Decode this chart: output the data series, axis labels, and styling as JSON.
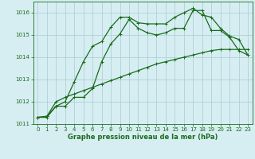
{
  "xlabel": "Graphe pression niveau de la mer (hPa)",
  "bg_color": "#d6eef2",
  "grid_color": "#afd0d8",
  "line_color": "#1a6b1a",
  "ylim": [
    1011.0,
    1016.5
  ],
  "xlim": [
    -0.5,
    23.5
  ],
  "yticks": [
    1011,
    1012,
    1013,
    1014,
    1015,
    1016
  ],
  "xticks": [
    0,
    1,
    2,
    3,
    4,
    5,
    6,
    7,
    8,
    9,
    10,
    11,
    12,
    13,
    14,
    15,
    16,
    17,
    18,
    19,
    20,
    21,
    22,
    23
  ],
  "line1_x": [
    0,
    1,
    2,
    3,
    4,
    5,
    6,
    7,
    8,
    9,
    10,
    11,
    12,
    13,
    14,
    15,
    16,
    17,
    18,
    19,
    20,
    21,
    22,
    23
  ],
  "line1_y": [
    1011.3,
    1011.35,
    1011.8,
    1011.8,
    1012.2,
    1012.2,
    1012.6,
    1013.8,
    1014.6,
    1015.05,
    1015.7,
    1015.3,
    1015.1,
    1015.0,
    1015.1,
    1015.3,
    1015.3,
    1016.1,
    1016.1,
    1015.2,
    1015.2,
    1014.9,
    1014.3,
    1014.1
  ],
  "line2_x": [
    0,
    1,
    2,
    3,
    4,
    5,
    6,
    7,
    8,
    9,
    10,
    11,
    12,
    13,
    14,
    15,
    16,
    17,
    18,
    19,
    20,
    21,
    22,
    23
  ],
  "line2_y": [
    1011.3,
    1011.3,
    1011.8,
    1012.0,
    1012.9,
    1013.8,
    1014.5,
    1014.7,
    1015.35,
    1015.8,
    1015.8,
    1015.55,
    1015.5,
    1015.5,
    1015.5,
    1015.8,
    1016.0,
    1016.2,
    1015.9,
    1015.8,
    1015.3,
    1014.95,
    1014.8,
    1014.1
  ],
  "line3_x": [
    0,
    1,
    2,
    3,
    4,
    5,
    6,
    7,
    8,
    9,
    10,
    11,
    12,
    13,
    14,
    15,
    16,
    17,
    18,
    19,
    20,
    21,
    22,
    23
  ],
  "line3_y": [
    1011.3,
    1011.35,
    1012.0,
    1012.2,
    1012.35,
    1012.5,
    1012.65,
    1012.8,
    1012.95,
    1013.1,
    1013.25,
    1013.4,
    1013.55,
    1013.7,
    1013.8,
    1013.9,
    1014.0,
    1014.1,
    1014.2,
    1014.3,
    1014.35,
    1014.35,
    1014.35,
    1014.35
  ]
}
